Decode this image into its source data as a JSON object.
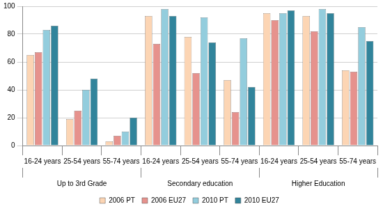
{
  "chart_data": {
    "type": "bar",
    "categories": [
      "16-24 years",
      "25-54 years",
      "55-74 years",
      "16-24 years",
      "25-54 years",
      "55-74 years",
      "16-24 years",
      "25-54 years",
      "55-74 years"
    ],
    "category_groups": [
      "Up to 3rd Grade",
      "Secondary education",
      "Higher Education"
    ],
    "series": [
      {
        "name": "2006 PT",
        "color": "#fcd5b4",
        "values": [
          65,
          19,
          3,
          93,
          78,
          47,
          95,
          93,
          54
        ]
      },
      {
        "name": "2006 EU27",
        "color": "#e6928d",
        "values": [
          67,
          25,
          7,
          73,
          52,
          24,
          90,
          82,
          53
        ]
      },
      {
        "name": "2010 PT",
        "color": "#93cddd",
        "values": [
          83,
          40,
          10,
          98,
          92,
          77,
          95,
          98,
          85
        ]
      },
      {
        "name": "2010 EU27",
        "color": "#31849b",
        "values": [
          86,
          48,
          20,
          93,
          74,
          42,
          97,
          95,
          75
        ]
      }
    ],
    "ylim": [
      0,
      100
    ],
    "yticks": [
      0,
      20,
      40,
      60,
      80,
      100
    ],
    "grid": true,
    "legend": "bottom"
  }
}
